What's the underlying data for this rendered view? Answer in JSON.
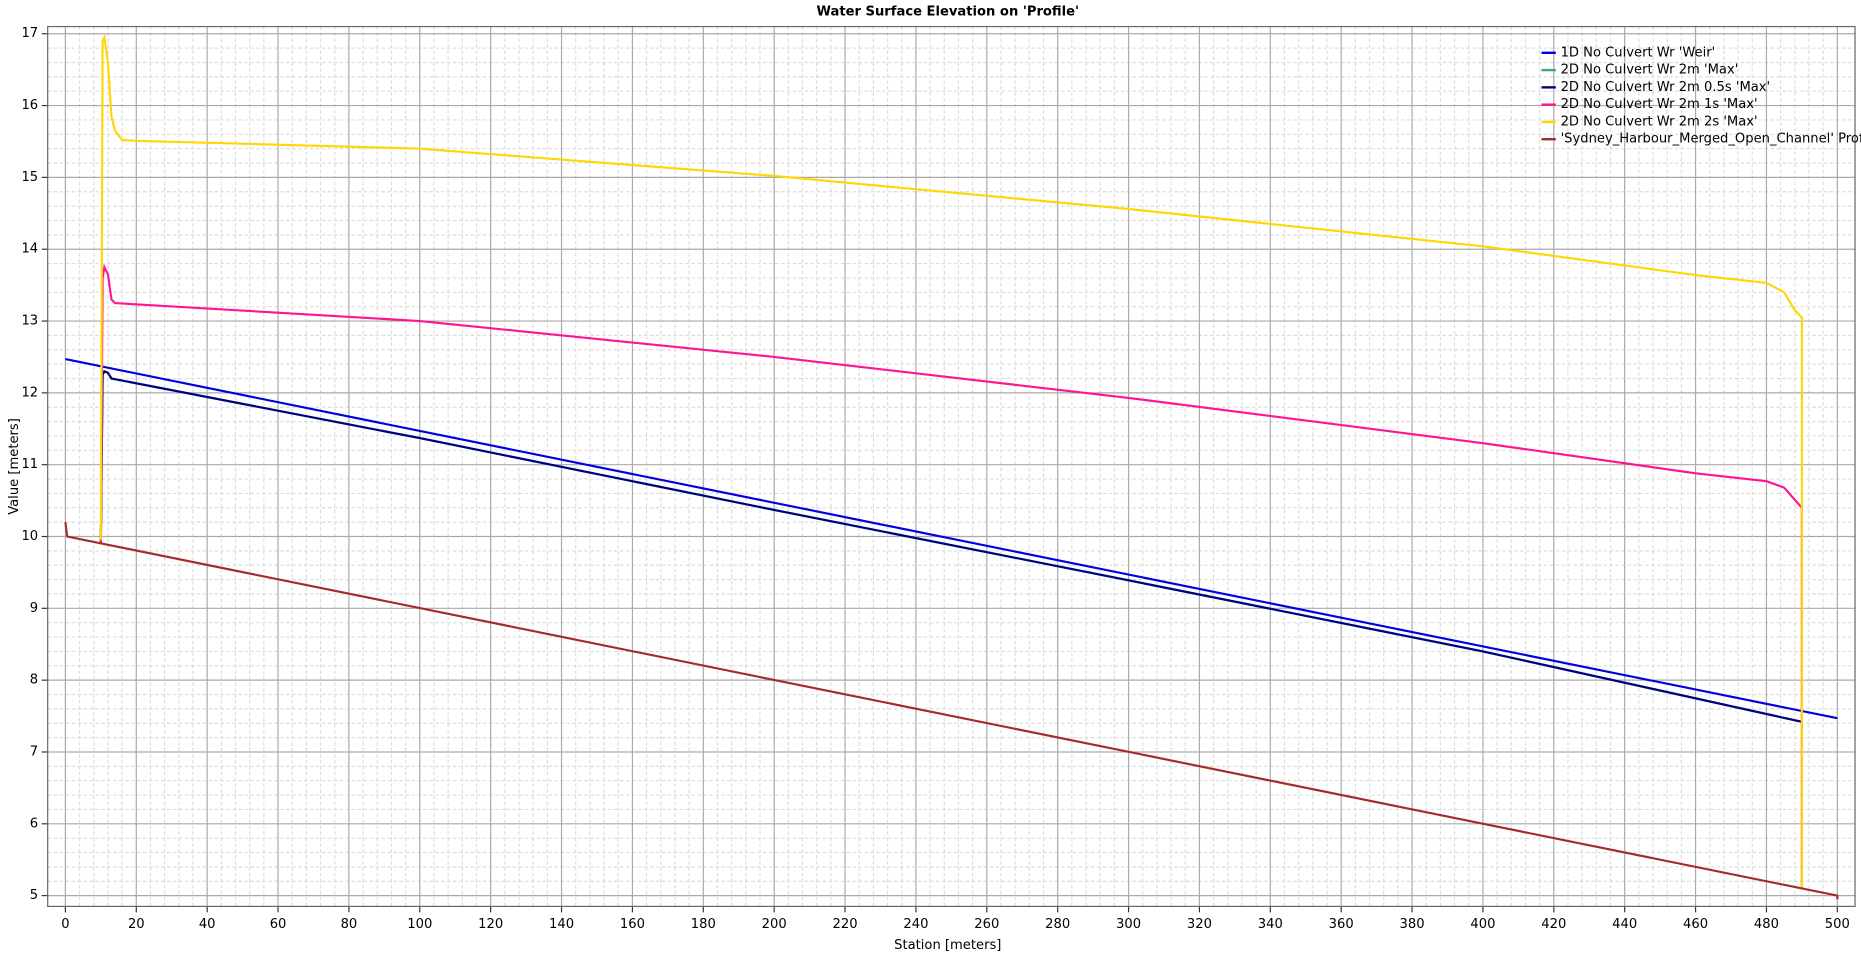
{
  "chart_data": {
    "type": "line",
    "title": "Water Surface Elevation on 'Profile'",
    "xlabel": "Station [meters]",
    "ylabel": "Value [meters]",
    "xlim": [
      -5,
      505
    ],
    "ylim": [
      4.85,
      17.1
    ],
    "xticks": [
      0,
      20,
      40,
      60,
      80,
      100,
      120,
      140,
      160,
      180,
      200,
      220,
      240,
      260,
      280,
      300,
      320,
      340,
      360,
      380,
      400,
      420,
      440,
      460,
      480,
      500
    ],
    "yticks": [
      5,
      6,
      7,
      8,
      9,
      10,
      11,
      12,
      13,
      14,
      15,
      16,
      17
    ],
    "grid": true,
    "legend": "top-right",
    "series": [
      {
        "name": "1D No Culvert Wr 'Weir'",
        "color": "#0000e0",
        "x": [
          0,
          500
        ],
        "values": [
          12.47,
          7.47
        ]
      },
      {
        "name": "2D No Culvert Wr 2m 'Max'",
        "color": "#3aa38f",
        "x": [
          10,
          10.5,
          11,
          12,
          13,
          100,
          200,
          300,
          400,
          490
        ],
        "values": [
          9.9,
          12.25,
          12.3,
          12.28,
          12.2,
          11.37,
          10.37,
          9.39,
          8.4,
          7.42
        ]
      },
      {
        "name": "2D No Culvert Wr 2m 0.5s 'Max'",
        "color": "#000080",
        "x": [
          10,
          10.5,
          11,
          12,
          13,
          100,
          200,
          300,
          400,
          490
        ],
        "values": [
          9.9,
          12.25,
          12.3,
          12.28,
          12.2,
          11.37,
          10.37,
          9.39,
          8.4,
          7.42
        ]
      },
      {
        "name": "2D No Culvert Wr 2m 1s 'Max'",
        "color": "#ff1493",
        "x": [
          10,
          10.5,
          11,
          12,
          13,
          14,
          100,
          200,
          300,
          400,
          460,
          480,
          485,
          490,
          490
        ],
        "values": [
          9.9,
          13.6,
          13.75,
          13.65,
          13.3,
          13.25,
          13.0,
          12.5,
          11.93,
          11.3,
          10.88,
          10.77,
          10.68,
          10.4,
          5.1
        ]
      },
      {
        "name": "2D No Culvert Wr 2m 2s 'Max'",
        "color": "#ffd700",
        "x": [
          10,
          10.5,
          11,
          12,
          13,
          14,
          16,
          20,
          100,
          200,
          300,
          400,
          460,
          480,
          485,
          488,
          490,
          490
        ],
        "values": [
          9.95,
          16.9,
          16.95,
          16.6,
          15.85,
          15.65,
          15.52,
          15.51,
          15.4,
          15.02,
          14.56,
          14.04,
          13.64,
          13.53,
          13.4,
          13.15,
          13.05,
          5.1
        ]
      },
      {
        "name": "'Sydney_Harbour_Merged_Open_Channel' Profile",
        "color": "#a52a2a",
        "x": [
          0,
          0.5,
          500,
          500
        ],
        "values": [
          10.2,
          10.0,
          5.0,
          4.95
        ]
      }
    ]
  }
}
